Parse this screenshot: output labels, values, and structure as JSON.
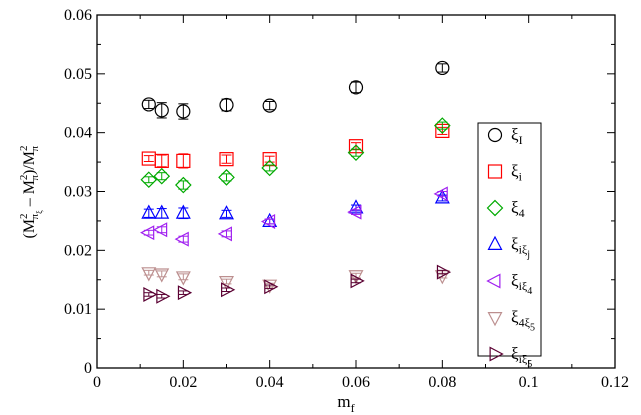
{
  "chart_data": {
    "type": "scatter",
    "title": "",
    "xlabel": "m",
    "xlabel_sub": "f",
    "ylabel_parts": {
      "open": "(M",
      "sup1": "2",
      "sub1": "π",
      "sub1_sub": "ξ",
      "minus": " – M",
      "sup2": "2",
      "sub2": "π",
      "close": ")/M",
      "sup3": "2",
      "sub3": "π"
    },
    "xlim": [
      0,
      0.12
    ],
    "ylim": [
      0,
      0.06
    ],
    "x_ticks": [
      "0",
      "0.02",
      "0.04",
      "0.06",
      "0.08",
      "0.1",
      "0.12"
    ],
    "y_ticks": [
      "0",
      "0.01",
      "0.02",
      "0.03",
      "0.04",
      "0.05",
      "0.06"
    ],
    "grid": false,
    "legend_position": "right",
    "series": [
      {
        "name": "ξ",
        "name_sub": "I",
        "marker": "circle",
        "color": "#000000",
        "points": [
          {
            "x": 0.012,
            "y": 0.0448,
            "err": 0.0007
          },
          {
            "x": 0.015,
            "y": 0.0438,
            "err": 0.0013
          },
          {
            "x": 0.02,
            "y": 0.0436,
            "err": 0.0013
          },
          {
            "x": 0.03,
            "y": 0.0447,
            "err": 0.001
          },
          {
            "x": 0.04,
            "y": 0.0446,
            "err": 0.0007
          },
          {
            "x": 0.06,
            "y": 0.0477,
            "err": 0.0009
          },
          {
            "x": 0.08,
            "y": 0.051,
            "err": 0.0007
          }
        ]
      },
      {
        "name": "ξ",
        "name_sub": "i",
        "marker": "square",
        "color": "#ff0000",
        "points": [
          {
            "x": 0.012,
            "y": 0.0356,
            "err": 0.0005
          },
          {
            "x": 0.015,
            "y": 0.0352,
            "err": 0.001
          },
          {
            "x": 0.02,
            "y": 0.0352,
            "err": 0.0012
          },
          {
            "x": 0.03,
            "y": 0.0355,
            "err": 0.0007
          },
          {
            "x": 0.04,
            "y": 0.0355,
            "err": 0.0005
          },
          {
            "x": 0.06,
            "y": 0.0377,
            "err": 0.0006
          },
          {
            "x": 0.08,
            "y": 0.0403,
            "err": 0.0006
          }
        ]
      },
      {
        "name": "ξ",
        "name_sub": "4",
        "marker": "diamond",
        "color": "#00aa00",
        "points": [
          {
            "x": 0.012,
            "y": 0.032,
            "err": 0.0005
          },
          {
            "x": 0.015,
            "y": 0.0326,
            "err": 0.0006
          },
          {
            "x": 0.02,
            "y": 0.0311,
            "err": 0.0007
          },
          {
            "x": 0.03,
            "y": 0.0324,
            "err": 0.0006
          },
          {
            "x": 0.04,
            "y": 0.034,
            "err": 0.0005
          },
          {
            "x": 0.06,
            "y": 0.0366,
            "err": 0.0006
          },
          {
            "x": 0.08,
            "y": 0.0412,
            "err": 0.0006
          }
        ]
      },
      {
        "name": "ξ",
        "name_sub": "iξ",
        "name_sub2": "j",
        "marker": "triangle-up",
        "color": "#0000ff",
        "points": [
          {
            "x": 0.012,
            "y": 0.0263,
            "err": 0.0007
          },
          {
            "x": 0.015,
            "y": 0.0263,
            "err": 0.0008
          },
          {
            "x": 0.02,
            "y": 0.0263,
            "err": 0.0009
          },
          {
            "x": 0.03,
            "y": 0.0262,
            "err": 0.0006
          },
          {
            "x": 0.04,
            "y": 0.0249,
            "err": 0.0004
          },
          {
            "x": 0.06,
            "y": 0.0272,
            "err": 0.0005
          },
          {
            "x": 0.08,
            "y": 0.0289,
            "err": 0.0005
          }
        ]
      },
      {
        "name": "ξ",
        "name_sub": "iξ",
        "name_sub2": "4",
        "marker": "triangle-left",
        "color": "#a020f0",
        "points": [
          {
            "x": 0.012,
            "y": 0.023,
            "err": 0.0004
          },
          {
            "x": 0.015,
            "y": 0.0235,
            "err": 0.0005
          },
          {
            "x": 0.02,
            "y": 0.0219,
            "err": 0.0005
          },
          {
            "x": 0.03,
            "y": 0.0228,
            "err": 0.0005
          },
          {
            "x": 0.04,
            "y": 0.0249,
            "err": 0.0004
          },
          {
            "x": 0.06,
            "y": 0.0265,
            "err": 0.0004
          },
          {
            "x": 0.08,
            "y": 0.0296,
            "err": 0.0004
          }
        ]
      },
      {
        "name": "ξ",
        "name_sub": "4ξ",
        "name_sub2": "5",
        "marker": "triangle-down",
        "color": "#bc8f8f",
        "points": [
          {
            "x": 0.012,
            "y": 0.0162,
            "err": 0.0004
          },
          {
            "x": 0.015,
            "y": 0.016,
            "err": 0.0005
          },
          {
            "x": 0.02,
            "y": 0.0155,
            "err": 0.0005
          },
          {
            "x": 0.03,
            "y": 0.0147,
            "err": 0.0004
          },
          {
            "x": 0.04,
            "y": 0.0141,
            "err": 0.0003
          },
          {
            "x": 0.06,
            "y": 0.0157,
            "err": 0.0004
          },
          {
            "x": 0.08,
            "y": 0.0157,
            "err": 0.0004
          }
        ]
      },
      {
        "name": "ξ",
        "name_sub": "iξ",
        "name_sub2": "5",
        "marker": "triangle-right",
        "color": "#5a0032",
        "points": [
          {
            "x": 0.012,
            "y": 0.0125,
            "err": 0.0003
          },
          {
            "x": 0.015,
            "y": 0.0122,
            "err": 0.0003
          },
          {
            "x": 0.02,
            "y": 0.0128,
            "err": 0.0003
          },
          {
            "x": 0.03,
            "y": 0.0133,
            "err": 0.0003
          },
          {
            "x": 0.04,
            "y": 0.0138,
            "err": 0.0003
          },
          {
            "x": 0.06,
            "y": 0.0148,
            "err": 0.0003
          },
          {
            "x": 0.08,
            "y": 0.0163,
            "err": 0.0003
          }
        ]
      }
    ]
  }
}
